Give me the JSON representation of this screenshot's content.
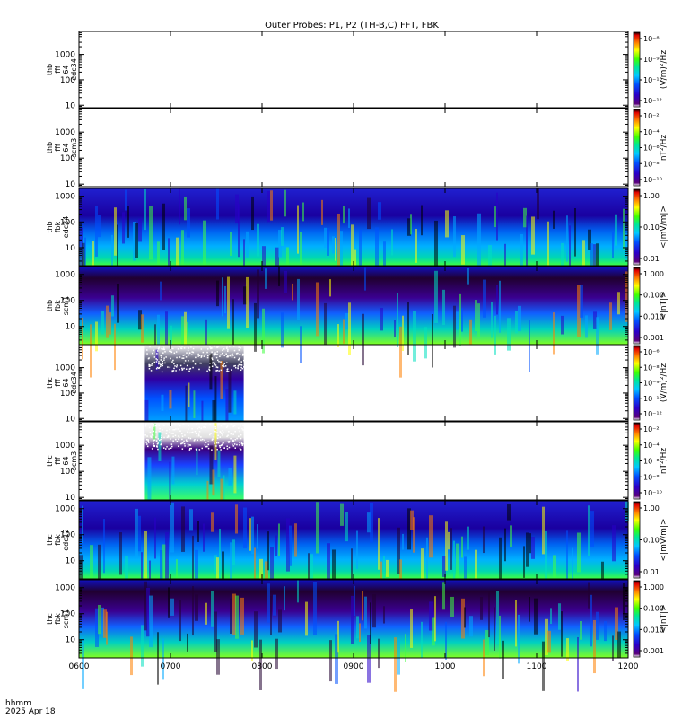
{
  "title": "Outer Probes: P1, P2 (TH-B,C) FFT, FBK",
  "time_axis": {
    "ticks": [
      "0600",
      "0700",
      "0800",
      "0900",
      "1000",
      "1100",
      "1200"
    ],
    "range_hours": [
      6,
      12
    ],
    "label_line1": "hhmm",
    "label_line2": "2025 Apr 18"
  },
  "chart_data": [
    {
      "type": "heatmap",
      "id": "p1",
      "label": [
        "thb",
        "fff",
        "64",
        "edc34"
      ],
      "yticks": [
        "10",
        "100",
        "1000"
      ],
      "ylog": true,
      "yrange": [
        8,
        8000
      ],
      "colorbar": {
        "ticks": [
          "10⁻⁸",
          "10⁻⁹",
          "10⁻¹⁰",
          "10⁻¹²"
        ],
        "title": "(V/m)²/Hz"
      },
      "data": "none"
    },
    {
      "type": "heatmap",
      "id": "p2",
      "label": [
        "thb",
        "fff",
        "64",
        "scm3"
      ],
      "yticks": [
        "10",
        "100",
        "1000"
      ],
      "ylog": true,
      "yrange": [
        8,
        8000
      ],
      "colorbar": {
        "ticks": [
          "10⁻²",
          "10⁻⁴",
          "10⁻⁶",
          "10⁻⁸",
          "10⁻¹⁰"
        ],
        "title": "nT²/Hz"
      },
      "data": "none"
    },
    {
      "type": "heatmap",
      "id": "p3",
      "label": [
        "thb",
        "fbk",
        "edc34"
      ],
      "yticks": [
        "10",
        "100",
        "1000"
      ],
      "ylog": true,
      "yrange": [
        2,
        2000
      ],
      "colorbar": {
        "ticks": [
          "1.00",
          "0.10",
          "0.01"
        ],
        "title": "<|mV/m|>"
      },
      "data_coverage_hours": [
        6,
        12
      ]
    },
    {
      "type": "heatmap",
      "id": "p4",
      "label": [
        "thb",
        "fbk",
        "scm1"
      ],
      "yticks": [
        "10",
        "100",
        "1000"
      ],
      "ylog": true,
      "yrange": [
        2,
        2000
      ],
      "colorbar": {
        "ticks": [
          "1.000",
          "0.100",
          "0.010",
          "0.001"
        ],
        "title": "<|nT|>"
      },
      "data_coverage_hours": [
        6,
        12
      ]
    },
    {
      "type": "heatmap",
      "id": "p5",
      "label": [
        "thc",
        "fff",
        "64",
        "edc34"
      ],
      "yticks": [
        "10",
        "100",
        "1000"
      ],
      "ylog": true,
      "yrange": [
        8,
        8000
      ],
      "colorbar": {
        "ticks": [
          "10⁻⁶",
          "10⁻⁸",
          "10⁻⁹",
          "10⁻¹⁰",
          "10⁻¹²"
        ],
        "title": "(V/m)²/Hz"
      },
      "data_coverage_hours": [
        6.72,
        7.8
      ]
    },
    {
      "type": "heatmap",
      "id": "p6",
      "label": [
        "thc",
        "fff",
        "64",
        "scm3"
      ],
      "yticks": [
        "10",
        "100",
        "1000"
      ],
      "ylog": true,
      "yrange": [
        8,
        8000
      ],
      "colorbar": {
        "ticks": [
          "10⁻²",
          "10⁻⁴",
          "10⁻⁶",
          "10⁻⁸",
          "10⁻¹⁰"
        ],
        "title": "nT²/Hz"
      },
      "data_coverage_hours": [
        6.72,
        7.8
      ]
    },
    {
      "type": "heatmap",
      "id": "p7",
      "label": [
        "thc",
        "fbk",
        "edc12"
      ],
      "yticks": [
        "10",
        "100",
        "1000"
      ],
      "ylog": true,
      "yrange": [
        2,
        2000
      ],
      "colorbar": {
        "ticks": [
          "1.00",
          "0.10",
          "0.01"
        ],
        "title": "<|mV/m|>"
      },
      "data_coverage_hours": [
        6,
        12
      ]
    },
    {
      "type": "heatmap",
      "id": "p8",
      "label": [
        "thc",
        "fbk",
        "scm1"
      ],
      "yticks": [
        "10",
        "100",
        "1000"
      ],
      "ylog": true,
      "yrange": [
        2,
        2000
      ],
      "colorbar": {
        "ticks": [
          "1.000",
          "0.100",
          "0.010",
          "0.001"
        ],
        "title": "<|nT|>"
      },
      "data_coverage_hours": [
        6,
        12
      ]
    }
  ]
}
